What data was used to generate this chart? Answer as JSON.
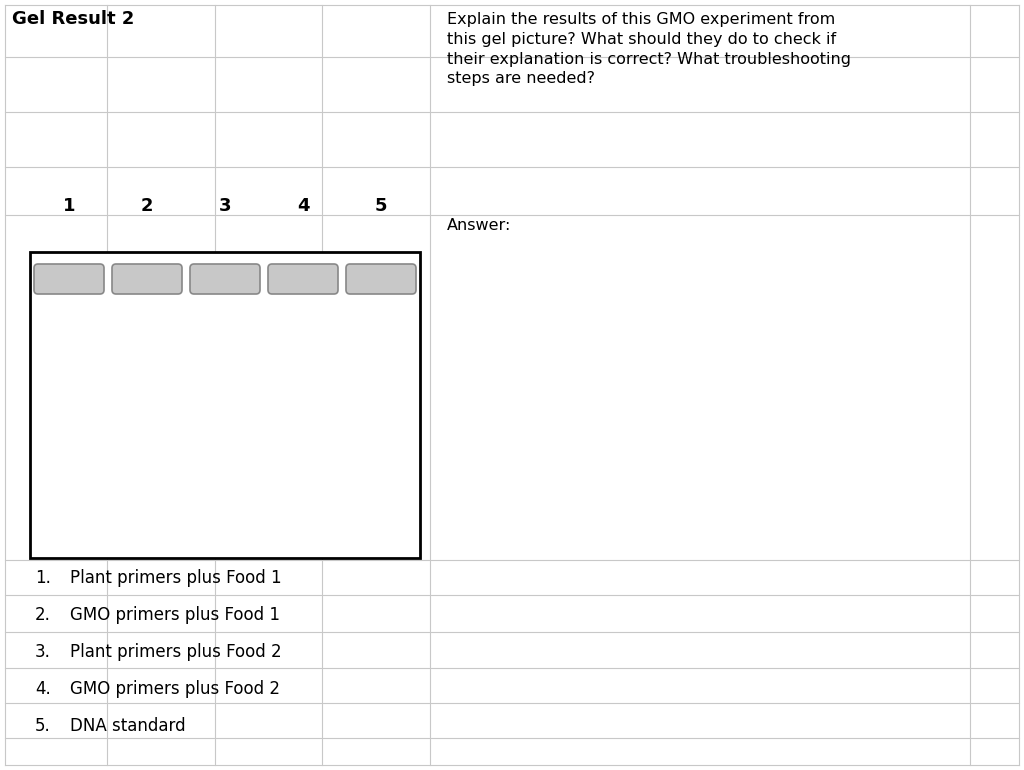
{
  "title": "Gel Result 2",
  "title_fontsize": 13,
  "title_fontweight": "bold",
  "question_text": "Explain the results of this GMO experiment from\nthis gel picture? What should they do to check if\ntheir explanation is correct? What troubleshooting\nsteps are needed?",
  "answer_label": "Answer:",
  "lane_labels": [
    "1",
    "2",
    "3",
    "4",
    "5"
  ],
  "legend_items": [
    [
      "1.",
      "Plant primers plus Food 1"
    ],
    [
      "2.",
      "GMO primers plus Food 1"
    ],
    [
      "3.",
      "Plant primers plus Food 2"
    ],
    [
      "4.",
      "GMO primers plus Food 2"
    ],
    [
      "5.",
      "DNA standard"
    ]
  ],
  "background_color": "#ffffff",
  "grid_color": "#c8c8c8",
  "gel_box_color": "#000000",
  "band_fill_color": "#c8c8c8",
  "band_edge_color": "#888888",
  "question_fontsize": 11.5,
  "legend_fontsize": 12,
  "answer_fontsize": 11.5,
  "lane_label_fontsize": 13
}
